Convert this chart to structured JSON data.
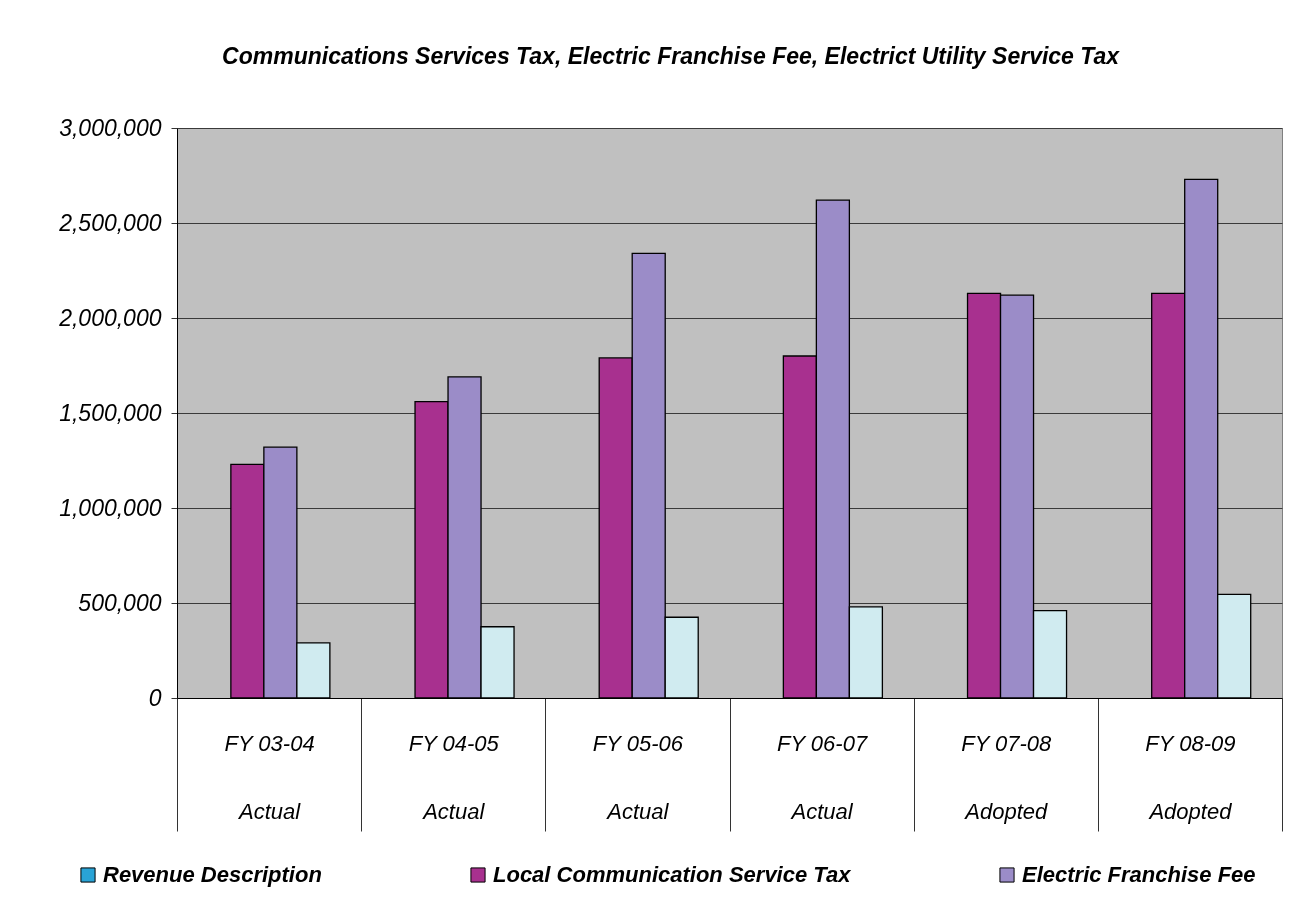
{
  "chart_data": {
    "type": "bar",
    "title": "Communications Services Tax, Electric Franchise Fee, Electrict Utility Service Tax",
    "categories": [
      "FY 03-04\nActual",
      "FY 04-05\nActual",
      "FY 05-06\nActual",
      "FY 06-07\nActual",
      "FY 07-08\nAdopted",
      "FY 08-09\nAdopted"
    ],
    "series": [
      {
        "name": "Revenue Description",
        "color": "#29a3d6",
        "values": [
          null,
          null,
          null,
          null,
          null,
          null
        ]
      },
      {
        "name": "Local Communication Service Tax",
        "color": "#a8308f",
        "values": [
          1230000,
          1560000,
          1790000,
          1800000,
          2130000,
          2130000
        ]
      },
      {
        "name": "Electric Franchise Fee",
        "color": "#9b8cc8",
        "values": [
          1320000,
          1690000,
          2340000,
          2620000,
          2120000,
          2730000
        ]
      },
      {
        "color": "#d0ebf0",
        "values": [
          290000,
          375000,
          425000,
          480000,
          460000,
          545000
        ]
      }
    ],
    "ylim": [
      0,
      3000000
    ],
    "yticks": [
      0,
      {
        "value": 500000,
        "label": "500,000"
      },
      {
        "value": 1000000,
        "label": "1,000,000"
      },
      {
        "value": 1500000,
        "label": "1,500,000"
      },
      {
        "value": 2000000,
        "label": "2,000,000"
      },
      {
        "value": 2500000,
        "label": "2,500,000"
      },
      {
        "value": 3000000,
        "label": "3,000,000"
      }
    ],
    "grid": "y",
    "legend": "bottom"
  }
}
